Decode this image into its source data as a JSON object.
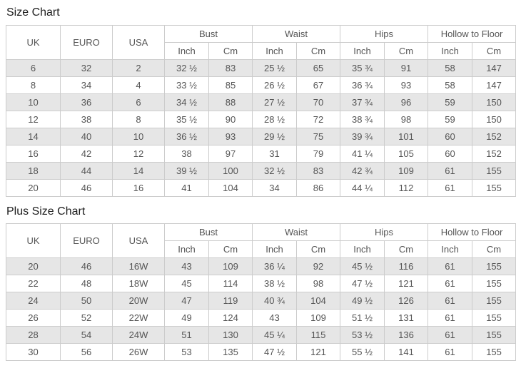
{
  "titles": {
    "size_chart": "Size Chart",
    "plus_size_chart": "Plus Size Chart"
  },
  "table_headers": {
    "base_columns": [
      "UK",
      "EURO",
      "USA"
    ],
    "measure_groups": [
      "Bust",
      "Waist",
      "Hips",
      "Hollow to Floor"
    ],
    "unit_columns": [
      "Inch",
      "Cm"
    ]
  },
  "size_chart": {
    "rows": [
      [
        "6",
        "32",
        "2",
        "32 ½",
        "83",
        "25 ½",
        "65",
        "35 ¾",
        "91",
        "58",
        "147"
      ],
      [
        "8",
        "34",
        "4",
        "33 ½",
        "85",
        "26 ½",
        "67",
        "36 ¾",
        "93",
        "58",
        "147"
      ],
      [
        "10",
        "36",
        "6",
        "34 ½",
        "88",
        "27 ½",
        "70",
        "37 ¾",
        "96",
        "59",
        "150"
      ],
      [
        "12",
        "38",
        "8",
        "35 ½",
        "90",
        "28 ½",
        "72",
        "38 ¾",
        "98",
        "59",
        "150"
      ],
      [
        "14",
        "40",
        "10",
        "36 ½",
        "93",
        "29 ½",
        "75",
        "39 ¾",
        "101",
        "60",
        "152"
      ],
      [
        "16",
        "42",
        "12",
        "38",
        "97",
        "31",
        "79",
        "41 ¼",
        "105",
        "60",
        "152"
      ],
      [
        "18",
        "44",
        "14",
        "39 ½",
        "100",
        "32 ½",
        "83",
        "42 ¾",
        "109",
        "61",
        "155"
      ],
      [
        "20",
        "46",
        "16",
        "41",
        "104",
        "34",
        "86",
        "44 ¼",
        "112",
        "61",
        "155"
      ]
    ]
  },
  "plus_size_chart": {
    "rows": [
      [
        "20",
        "46",
        "16W",
        "43",
        "109",
        "36 ¼",
        "92",
        "45 ½",
        "116",
        "61",
        "155"
      ],
      [
        "22",
        "48",
        "18W",
        "45",
        "114",
        "38 ½",
        "98",
        "47 ½",
        "121",
        "61",
        "155"
      ],
      [
        "24",
        "50",
        "20W",
        "47",
        "119",
        "40 ¾",
        "104",
        "49 ½",
        "126",
        "61",
        "155"
      ],
      [
        "26",
        "52",
        "22W",
        "49",
        "124",
        "43",
        "109",
        "51 ½",
        "131",
        "61",
        "155"
      ],
      [
        "28",
        "54",
        "24W",
        "51",
        "130",
        "45 ¼",
        "115",
        "53 ½",
        "136",
        "61",
        "155"
      ],
      [
        "30",
        "56",
        "26W",
        "53",
        "135",
        "47 ½",
        "121",
        "55 ½",
        "141",
        "61",
        "155"
      ]
    ]
  },
  "colors": {
    "stripe_row_bg": "#e6e6e6",
    "table_border": "#cccccc",
    "cell_text": "#555555",
    "title_text": "#1d1d1d",
    "page_bg": "#ffffff"
  }
}
